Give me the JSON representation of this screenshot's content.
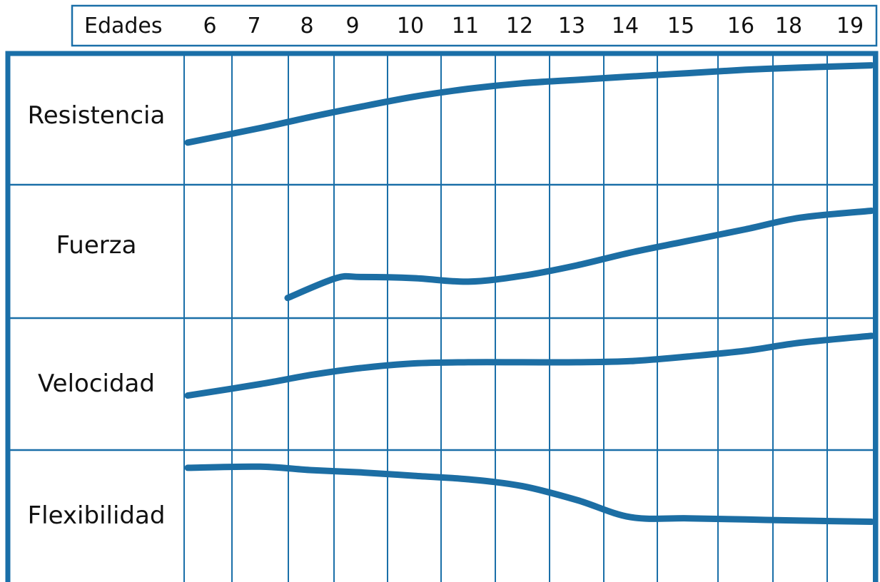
{
  "colors": {
    "line": "#1a6fa8",
    "curve": "#1c6ea4",
    "text": "#111111",
    "background": "#ffffff"
  },
  "chart_data": {
    "type": "line",
    "header_label": "Edades",
    "ages": [
      "6",
      "7",
      "8",
      "9",
      "10",
      "11",
      "12",
      "13",
      "14",
      "15",
      "16",
      "18",
      "19"
    ],
    "y_scale": "relative level within each row (0 = bottom of row, 1 = top of row)",
    "grid": true,
    "rows": [
      {
        "label": "Resistencia",
        "points": [
          [
            6,
            0.3
          ],
          [
            7,
            0.43
          ],
          [
            8,
            0.53
          ],
          [
            9,
            0.62
          ],
          [
            10,
            0.71
          ],
          [
            11,
            0.78
          ],
          [
            12,
            0.83
          ],
          [
            13,
            0.86
          ],
          [
            14,
            0.89
          ],
          [
            15,
            0.92
          ],
          [
            16,
            0.95
          ],
          [
            18,
            0.97
          ],
          [
            19,
            0.99
          ]
        ]
      },
      {
        "label": "Fuerza",
        "points": [
          [
            8,
            0.1
          ],
          [
            8.5,
            0.27
          ],
          [
            9,
            0.28
          ],
          [
            10,
            0.27
          ],
          [
            11,
            0.24
          ],
          [
            12,
            0.29
          ],
          [
            13,
            0.38
          ],
          [
            14,
            0.49
          ],
          [
            15,
            0.59
          ],
          [
            16,
            0.69
          ],
          [
            18,
            0.79
          ],
          [
            19,
            0.85
          ]
        ]
      },
      {
        "label": "Velocidad",
        "points": [
          [
            6,
            0.4
          ],
          [
            7,
            0.5
          ],
          [
            8,
            0.58
          ],
          [
            9,
            0.64
          ],
          [
            10,
            0.68
          ],
          [
            11,
            0.69
          ],
          [
            12,
            0.69
          ],
          [
            13,
            0.69
          ],
          [
            14,
            0.7
          ],
          [
            15,
            0.74
          ],
          [
            16,
            0.79
          ],
          [
            18,
            0.86
          ],
          [
            19,
            0.92
          ]
        ]
      },
      {
        "label": "Flexibilidad",
        "points": [
          [
            6,
            0.92
          ],
          [
            7,
            0.93
          ],
          [
            8,
            0.9
          ],
          [
            9,
            0.88
          ],
          [
            10,
            0.85
          ],
          [
            11,
            0.82
          ],
          [
            12,
            0.76
          ],
          [
            13,
            0.64
          ],
          [
            14,
            0.49
          ],
          [
            15,
            0.48
          ],
          [
            16,
            0.47
          ],
          [
            18,
            0.46
          ],
          [
            19,
            0.45
          ]
        ]
      }
    ]
  }
}
